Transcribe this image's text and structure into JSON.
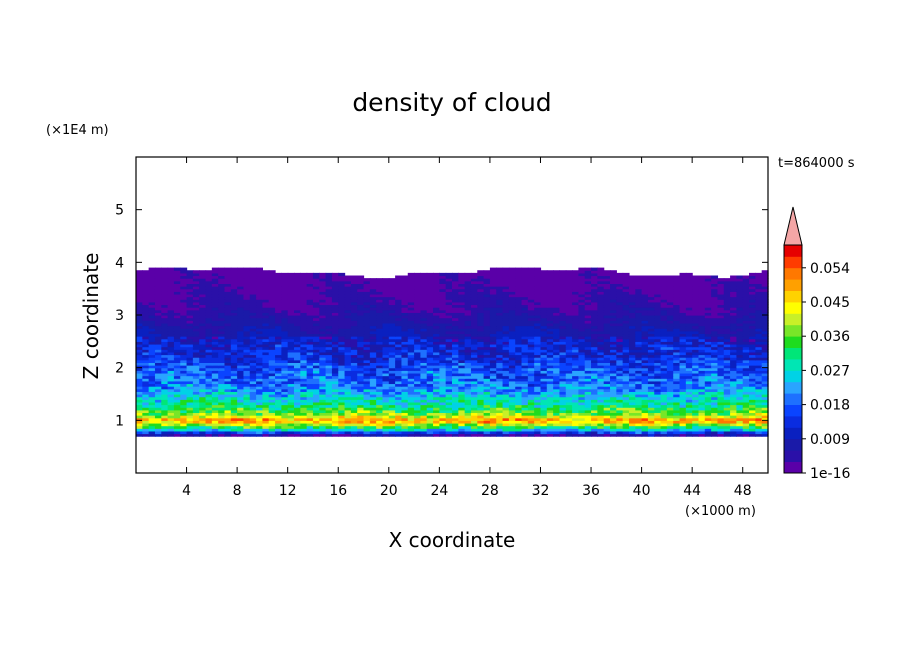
{
  "chart_data": {
    "type": "heatmap",
    "title": "density of cloud",
    "xlabel": "X coordinate",
    "ylabel": "Z coordinate",
    "x_units": "(×1000 m)",
    "y_units": "(×1E4 m)",
    "time_label": "t=864000 s",
    "xlim": [
      0,
      50
    ],
    "ylim": [
      0,
      6
    ],
    "x_ticks": [
      4,
      8,
      12,
      16,
      20,
      24,
      28,
      32,
      36,
      40,
      44,
      48
    ],
    "y_ticks": [
      1,
      2,
      3,
      4,
      5
    ],
    "colorbar": {
      "tick_labels": [
        "1e-16",
        "0.009",
        "0.018",
        "0.027",
        "0.036",
        "0.045",
        "0.054"
      ],
      "levels": [
        0.0,
        0.003,
        0.006,
        0.009,
        0.012,
        0.015,
        0.018,
        0.021,
        0.024,
        0.027,
        0.03,
        0.033,
        0.036,
        0.039,
        0.042,
        0.045,
        0.048,
        0.051,
        0.054,
        0.057
      ],
      "colors": [
        "#5a00a8",
        "#2a10a8",
        "#1a1aa8",
        "#0a20c0",
        "#0a2ce0",
        "#0a44ff",
        "#1e70ff",
        "#2aa4ff",
        "#00d2e6",
        "#00e6b4",
        "#00e678",
        "#1edc1e",
        "#78e628",
        "#c8f028",
        "#ffff00",
        "#ffd200",
        "#ffa000",
        "#ff7800",
        "#ff3c00",
        "#e60000"
      ],
      "extend_color": "#f4a6a6"
    },
    "profile": {
      "z": [
        0.72,
        0.8,
        0.85,
        0.9,
        0.95,
        1.0,
        1.05,
        1.1,
        1.15,
        1.2,
        1.3,
        1.4,
        1.5,
        1.6,
        1.7,
        1.8,
        1.9,
        2.0,
        2.1,
        2.2,
        2.35,
        2.5,
        2.7,
        2.9,
        3.1,
        3.3,
        3.5,
        3.7,
        3.88
      ],
      "density": [
        0.004,
        0.02,
        0.03,
        0.036,
        0.044,
        0.05,
        0.046,
        0.04,
        0.036,
        0.034,
        0.03,
        0.027,
        0.024,
        0.021,
        0.019,
        0.018,
        0.017,
        0.016,
        0.015,
        0.013,
        0.012,
        0.01,
        0.008,
        0.006,
        0.004,
        0.003,
        0.002,
        0.001,
        0.0005
      ]
    }
  }
}
